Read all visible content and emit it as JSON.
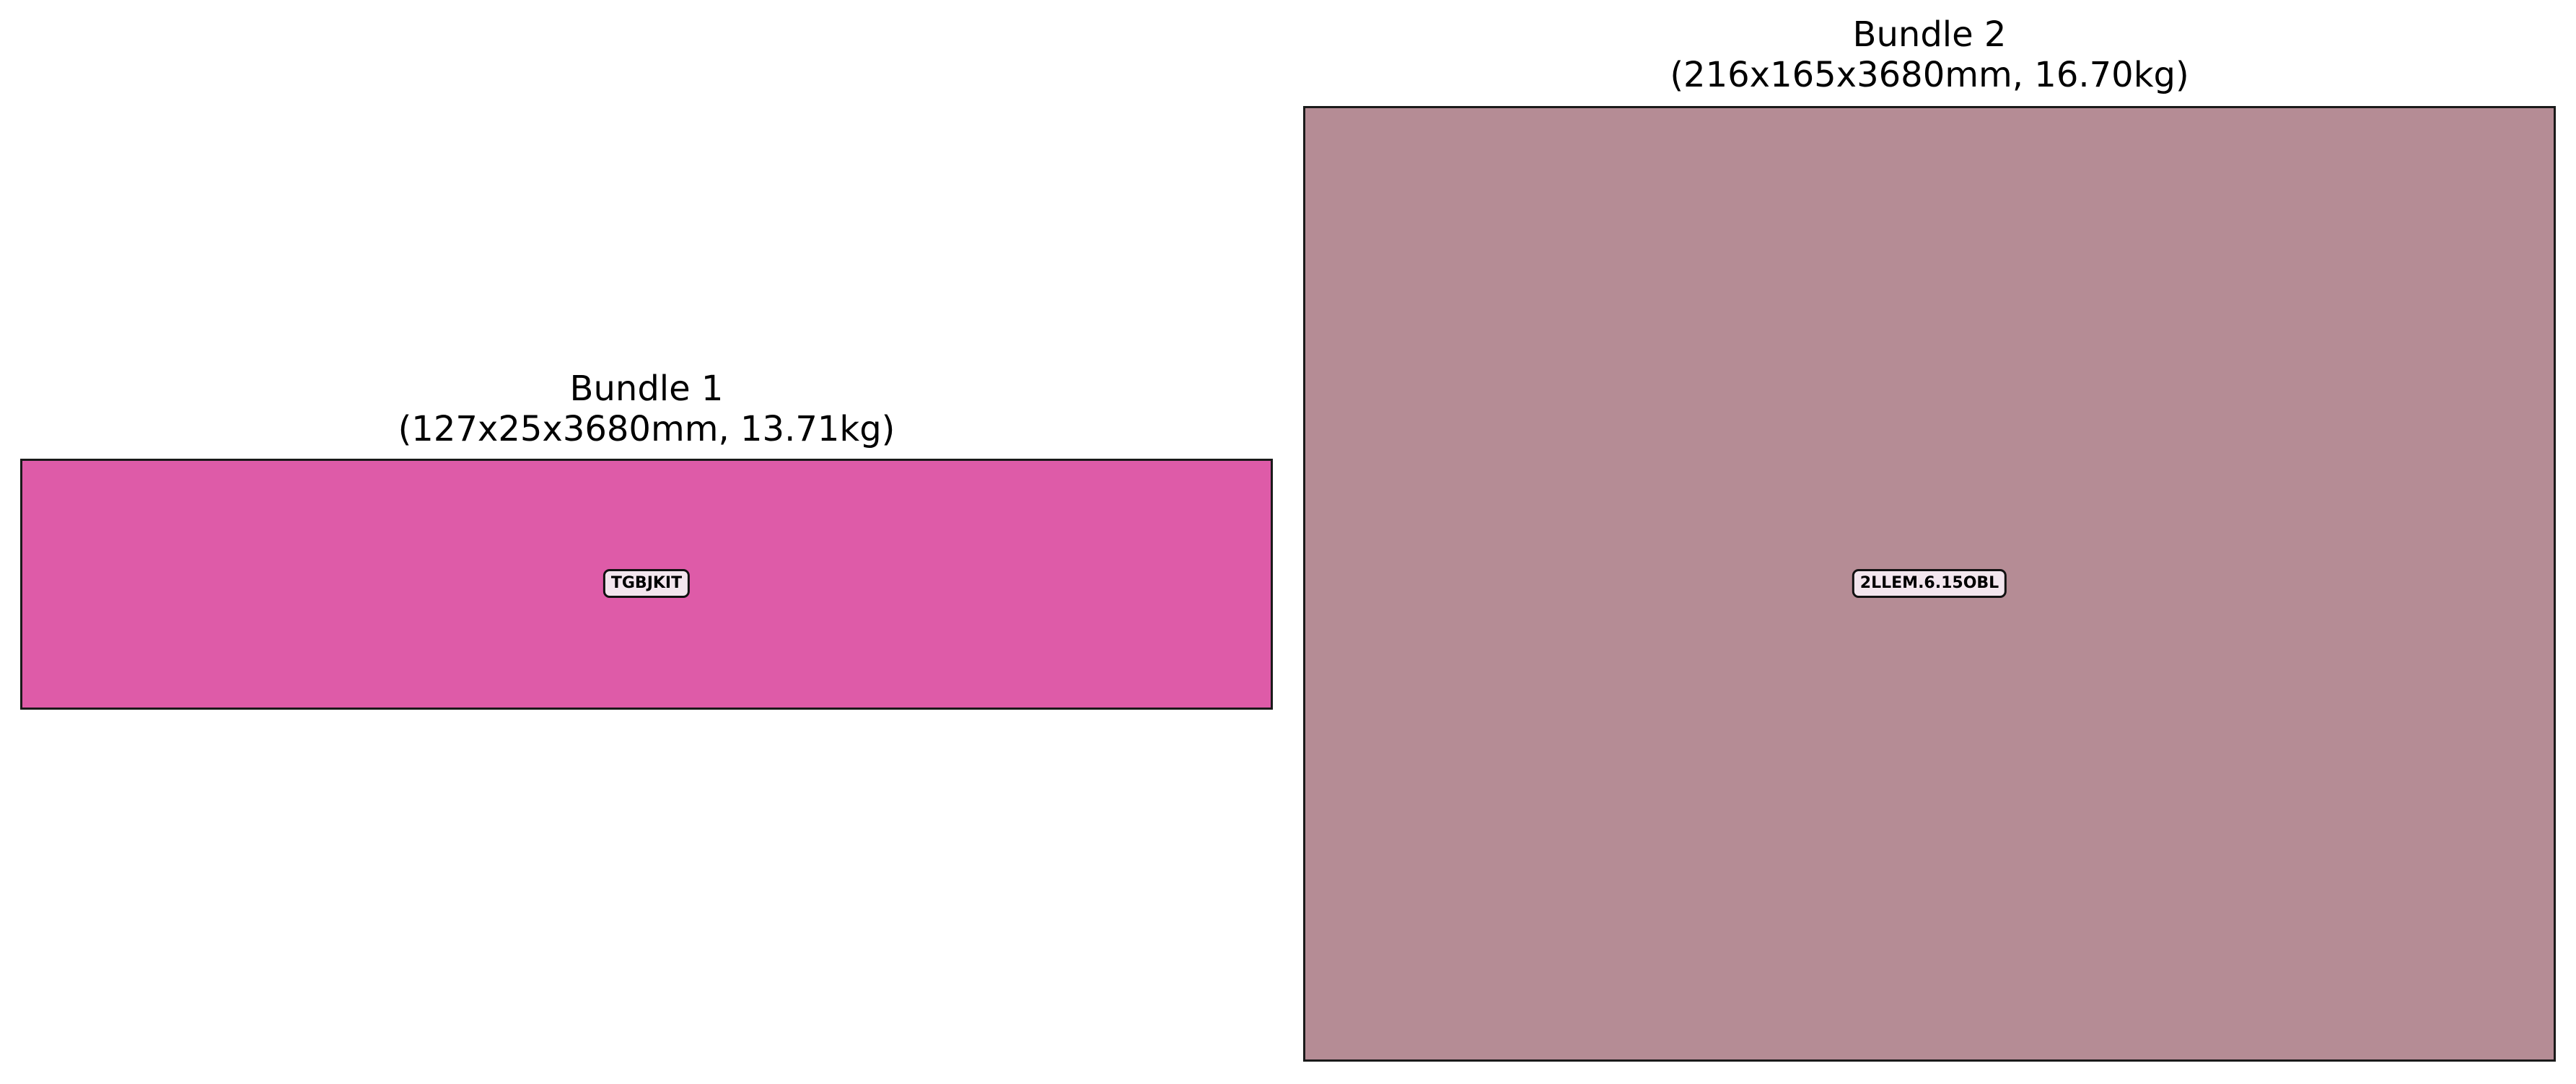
{
  "bundles": [
    {
      "title": "Bundle 1",
      "subtitle": "(127x25x3680mm, 13.71kg)",
      "tag": "TGBJKIT",
      "color": "#de5ba8"
    },
    {
      "title": "Bundle 2",
      "subtitle": "(216x165x3680mm, 16.70kg)",
      "tag": "2LLEM.6.15OBL",
      "color": "#b58c95"
    }
  ]
}
